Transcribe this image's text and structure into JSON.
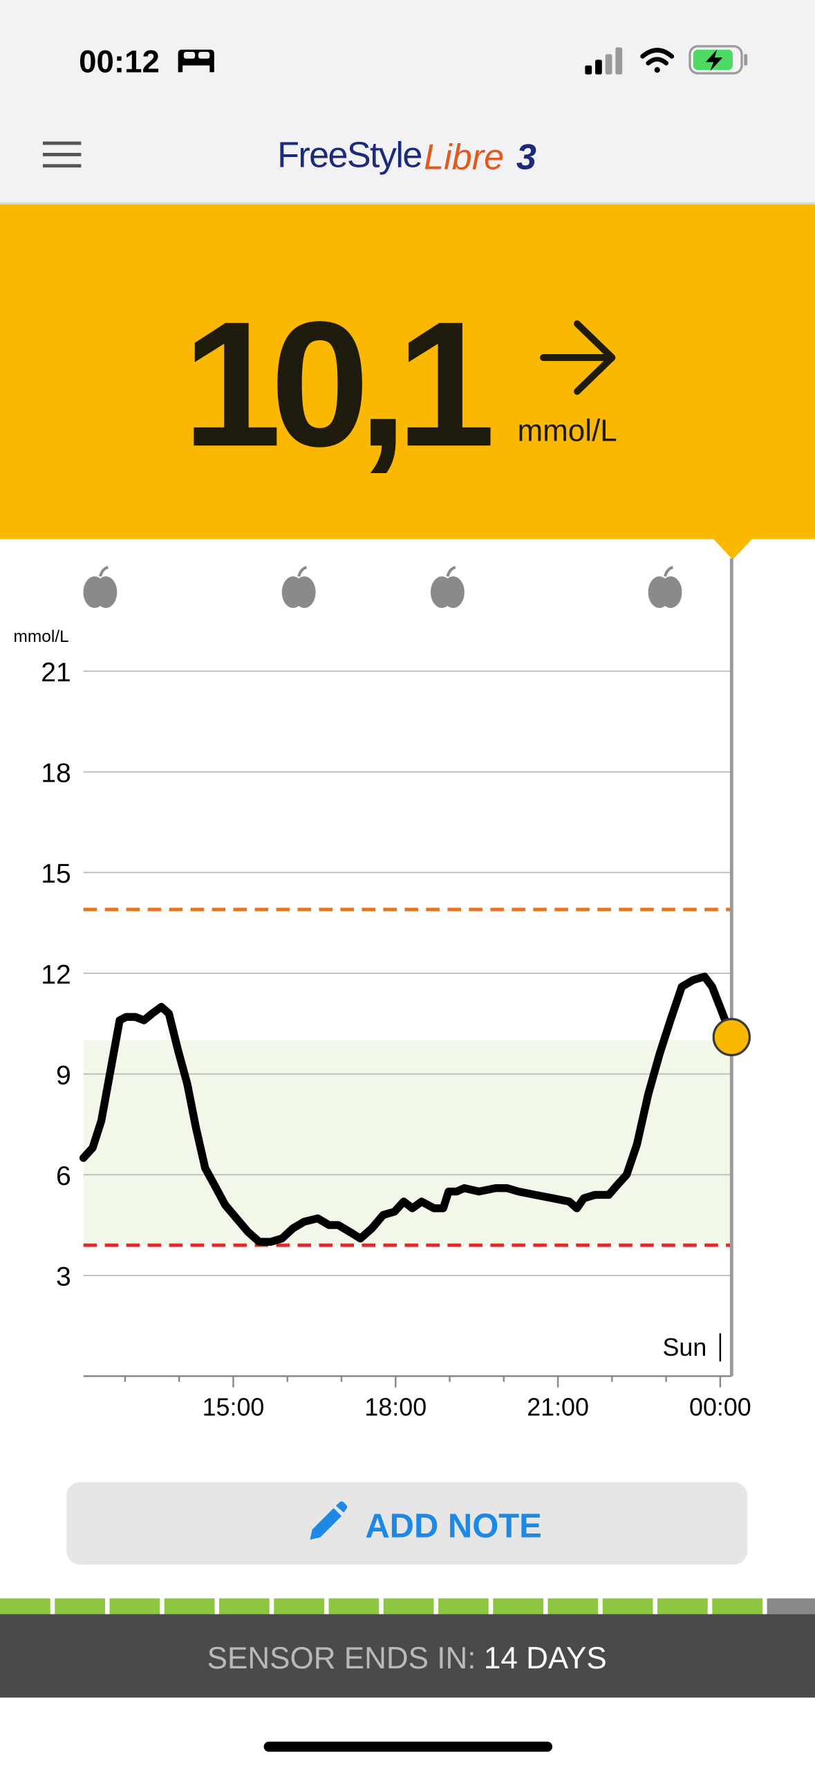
{
  "status_bar": {
    "time": "00:12"
  },
  "header": {
    "brand": "FreeStyle",
    "product": "Libre",
    "version": "3"
  },
  "reading": {
    "value": "10,1",
    "unit": "mmol/L"
  },
  "chart_data": {
    "type": "line",
    "y_label": "mmol/L",
    "color": "#000000",
    "x": [
      12.23,
      12.4,
      12.56,
      12.73,
      12.9,
      13.02,
      13.19,
      13.35,
      13.5,
      13.67,
      13.81,
      13.98,
      14.15,
      14.31,
      14.48,
      14.65,
      14.85,
      15.06,
      15.27,
      15.48,
      15.69,
      15.9,
      16.1,
      16.31,
      16.56,
      16.77,
      16.94,
      17.15,
      17.35,
      17.56,
      17.77,
      17.98,
      18.15,
      18.31,
      18.48,
      18.71,
      18.88,
      18.98,
      19.13,
      19.27,
      19.54,
      19.85,
      20.06,
      20.27,
      20.58,
      20.9,
      21.21,
      21.35,
      21.48,
      21.69,
      21.94,
      22.1,
      22.27,
      22.46,
      22.67,
      22.88,
      23.08,
      23.29,
      23.5,
      23.71,
      23.85,
      24.02,
      24.21
    ],
    "values": [
      6.5,
      6.8,
      7.6,
      9.1,
      10.6,
      10.7,
      10.7,
      10.6,
      10.8,
      11.0,
      10.8,
      9.7,
      8.7,
      7.4,
      6.2,
      5.7,
      5.1,
      4.7,
      4.3,
      4.0,
      4.0,
      4.1,
      4.4,
      4.6,
      4.7,
      4.5,
      4.5,
      4.3,
      4.1,
      4.4,
      4.8,
      4.9,
      5.2,
      5.0,
      5.2,
      5.0,
      5.0,
      5.5,
      5.5,
      5.6,
      5.5,
      5.6,
      5.6,
      5.5,
      5.4,
      5.3,
      5.2,
      5.0,
      5.3,
      5.4,
      5.4,
      5.7,
      6.0,
      6.9,
      8.4,
      9.6,
      10.6,
      11.6,
      11.8,
      11.9,
      11.6,
      10.9,
      10.1
    ],
    "xlim": [
      12.23,
      24.21
    ],
    "ylim": [
      0,
      21
    ],
    "yticks": [
      3,
      6,
      9,
      12,
      15,
      18,
      21
    ],
    "xticks": [
      {
        "value": 15,
        "label": "15:00"
      },
      {
        "value": 18,
        "label": "18:00"
      },
      {
        "value": 21,
        "label": "21:00"
      },
      {
        "value": 24,
        "label": "00:00"
      }
    ],
    "minor_xticks": [
      13,
      14,
      16,
      17,
      19,
      20,
      22,
      23
    ],
    "day_label": "Sun",
    "target_range": [
      3.9,
      10
    ],
    "high_limit": 13.9,
    "low_limit": 3.9,
    "meals": [
      12.54,
      16.21,
      18.96,
      22.98
    ],
    "grid": true
  },
  "add_note": "ADD NOTE",
  "sensor": {
    "label": "SENSOR ENDS IN:",
    "value": "14 DAYS"
  }
}
